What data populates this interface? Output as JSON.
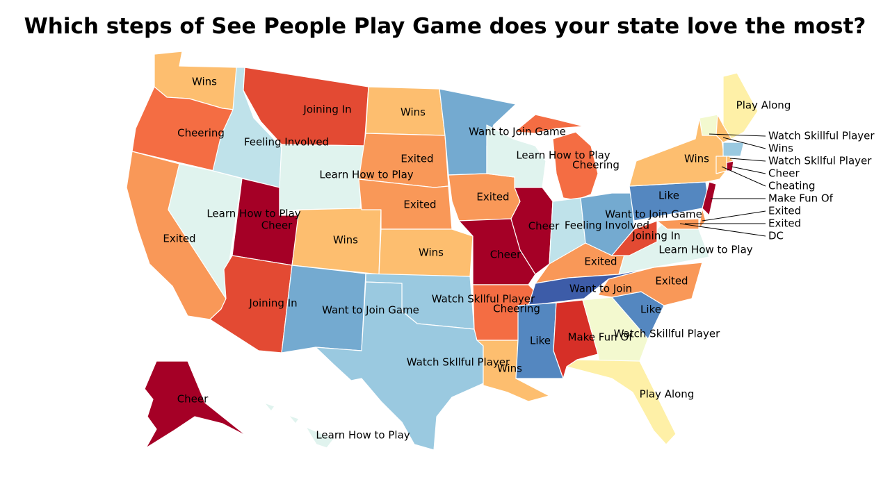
{
  "title": "Which steps of See People Play Game does your state love the most?",
  "colors": {
    "dark-red": "#a50026",
    "red": "#d62f27",
    "red-orange": "#e34a33",
    "orange-red": "#f46d43",
    "orange": "#f99858",
    "light-orange": "#fdbe6f",
    "pale-yellow": "#fef0a7",
    "pale-green-yellow": "#f3f9cf",
    "pale-cyan": "#e0f3ee",
    "light-blue": "#bfe2ea",
    "sky-blue": "#9ac9e0",
    "medium-blue": "#74aad0",
    "steel-blue": "#5487c0",
    "dark-blue": "#3d5ca8",
    "border": "#ffffff"
  },
  "states": [
    {
      "id": "WA",
      "label": "Wins",
      "color": "light-orange"
    },
    {
      "id": "OR",
      "label": "Cheering",
      "color": "orange-red"
    },
    {
      "id": "CA",
      "label": "Exited",
      "color": "orange"
    },
    {
      "id": "ID",
      "label": "Feeling Involved",
      "color": "light-blue"
    },
    {
      "id": "NV",
      "label": "Learn How to Play",
      "color": "pale-cyan"
    },
    {
      "id": "UT",
      "label": "Cheer",
      "color": "dark-red"
    },
    {
      "id": "AZ",
      "label": "Joining In",
      "color": "red-orange"
    },
    {
      "id": "MT",
      "label": "Joining In",
      "color": "red-orange"
    },
    {
      "id": "WY",
      "label": "Learn How to Play",
      "color": "pale-cyan"
    },
    {
      "id": "CO",
      "label": "Wins",
      "color": "light-orange"
    },
    {
      "id": "NM",
      "label": "Want to Join Game",
      "color": "medium-blue"
    },
    {
      "id": "ND",
      "label": "Wins",
      "color": "light-orange"
    },
    {
      "id": "SD",
      "label": "Exited",
      "color": "orange"
    },
    {
      "id": "NE",
      "label": "Exited",
      "color": "orange"
    },
    {
      "id": "KS",
      "label": "Wins",
      "color": "light-orange"
    },
    {
      "id": "OK",
      "label": "Watch Skllful Player",
      "color": "sky-blue"
    },
    {
      "id": "TX",
      "label": "Watch Skllful Player",
      "color": "sky-blue"
    },
    {
      "id": "MN",
      "label": "Want to Join Game",
      "color": "medium-blue"
    },
    {
      "id": "IA",
      "label": "Exited",
      "color": "orange"
    },
    {
      "id": "MO",
      "label": "Cheer",
      "color": "dark-red"
    },
    {
      "id": "AR",
      "label": "Cheering",
      "color": "orange-red"
    },
    {
      "id": "LA",
      "label": "Wins",
      "color": "light-orange"
    },
    {
      "id": "WI",
      "label": "Learn How to Play",
      "color": "pale-cyan"
    },
    {
      "id": "IL",
      "label": "Cheer",
      "color": "dark-red"
    },
    {
      "id": "MI",
      "label": "Cheering",
      "color": "orange-red"
    },
    {
      "id": "IN",
      "label": "Feeling Involved",
      "color": "light-blue"
    },
    {
      "id": "OH",
      "label": "Want to Join Game",
      "color": "medium-blue"
    },
    {
      "id": "KY",
      "label": "Exited",
      "color": "orange"
    },
    {
      "id": "TN",
      "label": "Want to Join",
      "color": "dark-blue"
    },
    {
      "id": "MS",
      "label": "Like",
      "color": "steel-blue"
    },
    {
      "id": "AL",
      "label": "Make Fun Of",
      "color": "red"
    },
    {
      "id": "GA",
      "label": "Watch Skillful Player",
      "color": "pale-green-yellow"
    },
    {
      "id": "FL",
      "label": "Play Along",
      "color": "pale-yellow"
    },
    {
      "id": "SC",
      "label": "Like",
      "color": "steel-blue"
    },
    {
      "id": "NC",
      "label": "Exited",
      "color": "orange"
    },
    {
      "id": "VA",
      "label": "Learn How to Play",
      "color": "pale-cyan"
    },
    {
      "id": "WV",
      "label": "Joining In",
      "color": "red-orange"
    },
    {
      "id": "PA",
      "label": "Like",
      "color": "steel-blue"
    },
    {
      "id": "NY",
      "label": "Wins",
      "color": "light-orange"
    },
    {
      "id": "ME",
      "label": "Play Along",
      "color": "pale-yellow"
    },
    {
      "id": "AK",
      "label": "Cheer",
      "color": "dark-red"
    },
    {
      "id": "HI",
      "label": "Learn How to Play",
      "color": "pale-cyan"
    }
  ],
  "callouts": [
    {
      "id": "VT",
      "label": "Watch Skillful Player",
      "color": "pale-green-yellow"
    },
    {
      "id": "NH",
      "label": "Wins",
      "color": "light-orange"
    },
    {
      "id": "MA",
      "label": "Watch Skllful Player",
      "color": "sky-blue"
    },
    {
      "id": "RI",
      "label": "Cheer",
      "color": "dark-red"
    },
    {
      "id": "CT",
      "label": "Cheating",
      "color": "light-orange"
    },
    {
      "id": "NJ",
      "label": "Make Fun Of",
      "color": "dark-red"
    },
    {
      "id": "DE",
      "label": "Exited",
      "color": "orange"
    },
    {
      "id": "MD",
      "label": "Exited",
      "color": "orange"
    },
    {
      "id": "DC",
      "label": "DC",
      "color": "red"
    }
  ]
}
